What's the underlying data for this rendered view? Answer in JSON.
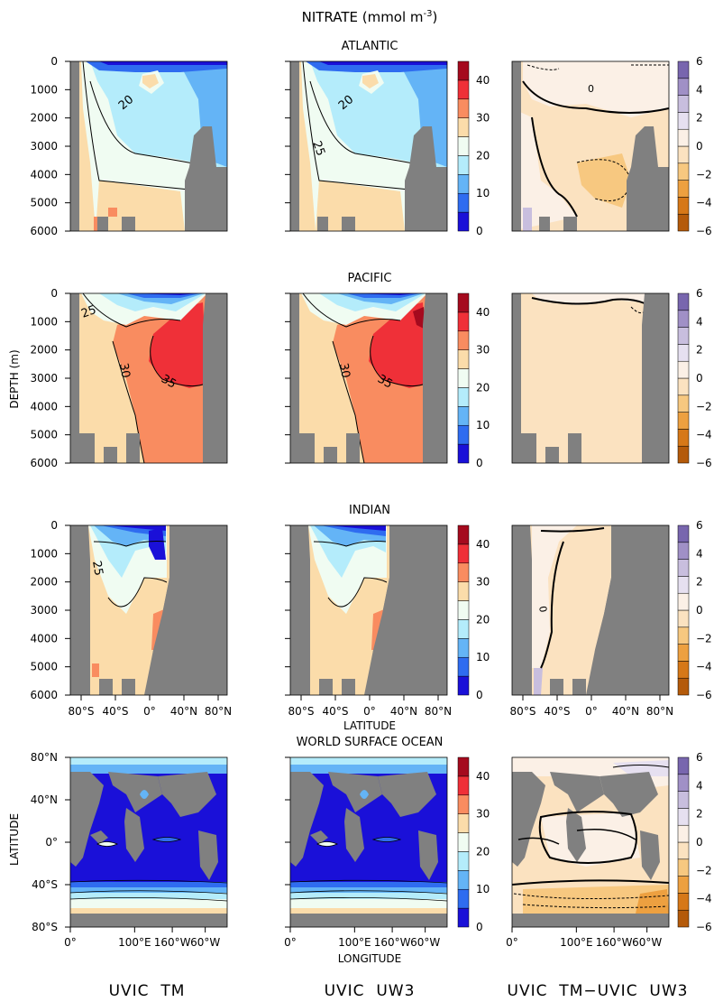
{
  "figure": {
    "title": "NITRATE (mmol m",
    "title_sup": "-3",
    "title_close": ")",
    "column_labels": [
      "UVIC  TM",
      "UVIC  UW3",
      "UVIC  TM−UVIC  UW3"
    ]
  },
  "colors": {
    "land": "#808080",
    "seq_bins": [
      "#1a10d8",
      "#2f6cf0",
      "#64b4f6",
      "#b4ecfb",
      "#f0fcf2",
      "#fbdcaa",
      "#f98c60",
      "#ef3038",
      "#a50a1e"
    ],
    "div_bins": [
      "#b45a0a",
      "#d67818",
      "#eda040",
      "#f7c880",
      "#fbe2c0",
      "#fbf0e6",
      "#e6e0f0",
      "#c8bede",
      "#a090c6",
      "#7866ae"
    ]
  },
  "chart_data": [
    {
      "type": "heatmap",
      "title": "ATLANTIC",
      "ylabel": "",
      "yticks": [
        "0",
        "1000",
        "2000",
        "3000",
        "4000",
        "5000",
        "6000"
      ],
      "xticks": [],
      "colorbar": {
        "ticks": [
          "40",
          "30",
          "20",
          "10",
          "0"
        ],
        "range": [
          0,
          45
        ]
      },
      "contour_labels": [
        "20",
        "25",
        "0"
      ]
    },
    {
      "type": "heatmap",
      "title": "PACIFIC",
      "ylabel": "DEPTH (m)",
      "yticks": [
        "0",
        "1000",
        "2000",
        "3000",
        "4000",
        "5000",
        "6000"
      ],
      "xticks": [],
      "colorbar": {
        "ticks": [
          "40",
          "30",
          "20",
          "10",
          "0"
        ],
        "range": [
          0,
          45
        ]
      },
      "contour_labels": [
        "25",
        "30",
        "35"
      ]
    },
    {
      "type": "heatmap",
      "title": "INDIAN",
      "ylabel": "",
      "yticks": [
        "0",
        "1000",
        "2000",
        "3000",
        "4000",
        "5000",
        "6000"
      ],
      "xticks": [
        "80°S",
        "40°S",
        "0°",
        "40°N",
        "80°N"
      ],
      "xlabel": "LATITUDE",
      "colorbar": {
        "ticks": [
          "40",
          "30",
          "20",
          "10",
          "0"
        ],
        "range": [
          0,
          45
        ]
      },
      "contour_labels": [
        "25",
        "0"
      ]
    },
    {
      "type": "heatmap",
      "title": "WORLD SURFACE OCEAN",
      "ylabel": "LATITUDE",
      "yticks": [
        "80°N",
        "40°N",
        "0°",
        "40°S",
        "80°S"
      ],
      "xticks": [
        "0°",
        "100°E",
        "160°W",
        "60°W"
      ],
      "xlabel": "LONGITUDE",
      "colorbar": {
        "ticks": [
          "40",
          "30",
          "20",
          "10",
          "0"
        ],
        "range": [
          0,
          45
        ]
      },
      "diff_colorbar": {
        "ticks": [
          "6",
          "4",
          "2",
          "0",
          "-2",
          "-4",
          "-6"
        ],
        "range": [
          -6,
          6
        ]
      }
    }
  ]
}
